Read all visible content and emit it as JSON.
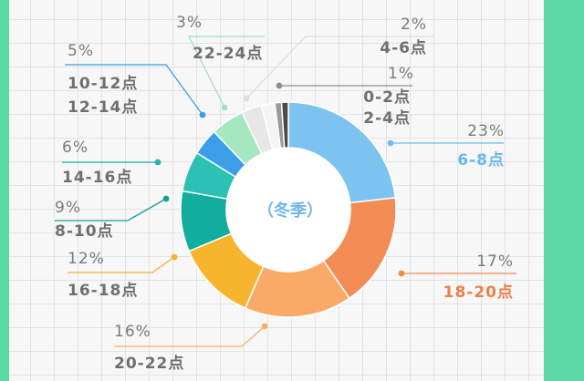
{
  "chart_data": {
    "type": "pie",
    "subtitle": "（冬季）",
    "slices": [
      {
        "label": "6-8点",
        "pct_label": "23%",
        "value": 23,
        "color": "#7cc3f0",
        "label_color": "#69b9ea"
      },
      {
        "label": "18-20点",
        "pct_label": "17%",
        "value": 17,
        "color": "#f28c54",
        "label_color": "#ef7f43"
      },
      {
        "label": "20-22点",
        "pct_label": "16%",
        "value": 16,
        "color": "#f8aa66",
        "label_color": "#6f6f6f"
      },
      {
        "label": "16-18点",
        "pct_label": "12%",
        "value": 12,
        "color": "#f7b52f",
        "label_color": "#6f6f6f"
      },
      {
        "label": "8-10点",
        "pct_label": "9%",
        "value": 9,
        "color": "#12ad9c",
        "label_color": "#6f6f6f"
      },
      {
        "label": "14-16点",
        "pct_label": "6%",
        "value": 6,
        "color": "#2dc1b6",
        "label_color": "#6f6f6f"
      },
      {
        "label": "12-14点",
        "pct_label": "",
        "value": 4,
        "color": "#3a9ee9",
        "label_color": "#6f6f6f"
      },
      {
        "label": "10-12点",
        "pct_label": "5%",
        "value": 5,
        "color": "#a5e8c0",
        "label_color": "#6f6f6f"
      },
      {
        "label": "22-24点",
        "pct_label": "3%",
        "value": 3,
        "color": "#e7e7e7",
        "label_color": "#6f6f6f"
      },
      {
        "label": "4-6点",
        "pct_label": "2%",
        "value": 2,
        "color": "#f4f4f4",
        "label_color": "#6f6f6f"
      },
      {
        "label": "0-2点",
        "pct_label": "1%",
        "value": 1,
        "color": "#9a9a9a",
        "label_color": "#6f6f6f"
      },
      {
        "label": "2-4点",
        "pct_label": "",
        "value": 1,
        "color": "#4a4a4a",
        "label_color": "#6f6f6f"
      }
    ]
  }
}
